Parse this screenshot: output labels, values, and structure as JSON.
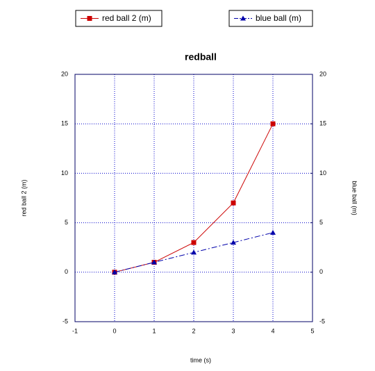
{
  "chart_data": {
    "type": "line",
    "title": "redball",
    "x_label": "time (s)",
    "y_label": "red ball 2 (m)",
    "y2_label": "blue ball (m)",
    "x": [
      0,
      1,
      2,
      3,
      4
    ],
    "series": [
      {
        "name": "red ball 2 (m)",
        "color": "#cc0000",
        "marker": "square",
        "dash": false,
        "values": [
          0,
          1,
          3,
          7,
          15
        ]
      },
      {
        "name": "blue ball (m)",
        "color": "#0000aa",
        "marker": "triangle",
        "dash": true,
        "axis": "y2",
        "values": [
          0,
          1,
          2,
          3,
          4
        ]
      }
    ],
    "xlim": [
      -1,
      5
    ],
    "xticks": [
      -1,
      0,
      1,
      2,
      3,
      4,
      5
    ],
    "ylim": [
      -5,
      20
    ],
    "yticks": [
      -5,
      0,
      5,
      10,
      15,
      20
    ],
    "y2lim": [
      -5,
      20
    ],
    "y2ticks": [
      -5,
      0,
      5,
      10,
      15,
      20
    ],
    "grid": true,
    "legend": "top"
  }
}
